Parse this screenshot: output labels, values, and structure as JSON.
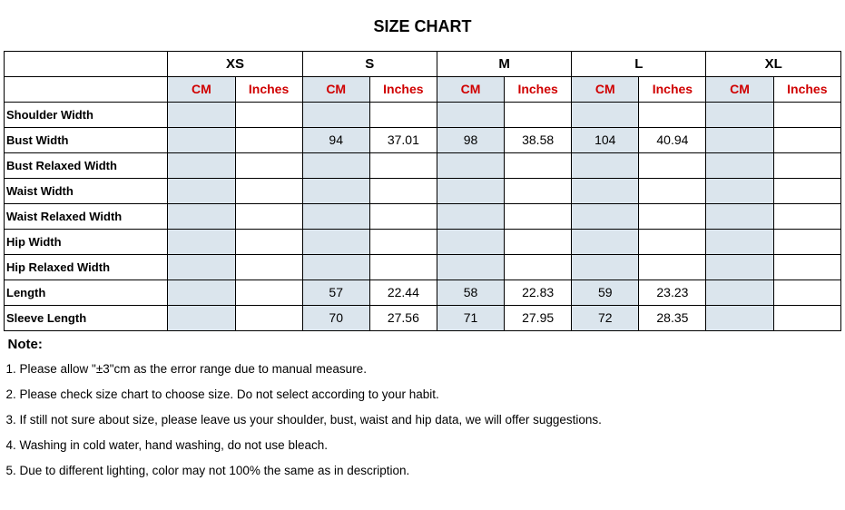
{
  "title": "SIZE CHART",
  "sizes": [
    "XS",
    "S",
    "M",
    "L",
    "XL"
  ],
  "units": [
    "CM",
    "Inches"
  ],
  "colors": {
    "unit_header": "#d00000",
    "alt_bg": "#dbe5ed",
    "border": "#000000",
    "background": "#ffffff"
  },
  "measurements": [
    {
      "label": "Shoulder Width",
      "values": {
        "XS": [
          "",
          ""
        ],
        "S": [
          "",
          ""
        ],
        "M": [
          "",
          ""
        ],
        "L": [
          "",
          ""
        ],
        "XL": [
          "",
          ""
        ]
      }
    },
    {
      "label": "Bust Width",
      "values": {
        "XS": [
          "",
          ""
        ],
        "S": [
          "94",
          "37.01"
        ],
        "M": [
          "98",
          "38.58"
        ],
        "L": [
          "104",
          "40.94"
        ],
        "XL": [
          "",
          ""
        ]
      }
    },
    {
      "label": "Bust Relaxed Width",
      "values": {
        "XS": [
          "",
          ""
        ],
        "S": [
          "",
          ""
        ],
        "M": [
          "",
          ""
        ],
        "L": [
          "",
          ""
        ],
        "XL": [
          "",
          ""
        ]
      }
    },
    {
      "label": "Waist Width",
      "values": {
        "XS": [
          "",
          ""
        ],
        "S": [
          "",
          ""
        ],
        "M": [
          "",
          ""
        ],
        "L": [
          "",
          ""
        ],
        "XL": [
          "",
          ""
        ]
      }
    },
    {
      "label": "Waist Relaxed Width",
      "values": {
        "XS": [
          "",
          ""
        ],
        "S": [
          "",
          ""
        ],
        "M": [
          "",
          ""
        ],
        "L": [
          "",
          ""
        ],
        "XL": [
          "",
          ""
        ]
      }
    },
    {
      "label": "Hip Width",
      "values": {
        "XS": [
          "",
          ""
        ],
        "S": [
          "",
          ""
        ],
        "M": [
          "",
          ""
        ],
        "L": [
          "",
          ""
        ],
        "XL": [
          "",
          ""
        ]
      }
    },
    {
      "label": "Hip Relaxed Width",
      "values": {
        "XS": [
          "",
          ""
        ],
        "S": [
          "",
          ""
        ],
        "M": [
          "",
          ""
        ],
        "L": [
          "",
          ""
        ],
        "XL": [
          "",
          ""
        ]
      }
    },
    {
      "label": "Length",
      "values": {
        "XS": [
          "",
          ""
        ],
        "S": [
          "57",
          "22.44"
        ],
        "M": [
          "58",
          "22.83"
        ],
        "L": [
          "59",
          "23.23"
        ],
        "XL": [
          "",
          ""
        ]
      }
    },
    {
      "label": "Sleeve Length",
      "values": {
        "XS": [
          "",
          ""
        ],
        "S": [
          "70",
          "27.56"
        ],
        "M": [
          "71",
          "27.95"
        ],
        "L": [
          "72",
          "28.35"
        ],
        "XL": [
          "",
          ""
        ]
      }
    }
  ],
  "note_title": "Note:",
  "notes": [
    "1. Please allow \"±3\"cm as the error range due to manual measure.",
    "2. Please check size chart to choose size. Do not select according to your habit.",
    "3. If still not sure about size, please leave us your shoulder, bust, waist and hip data, we will offer suggestions.",
    "4. Washing in cold water, hand washing, do not use bleach.",
    "5. Due to different lighting, color may not 100% the same as in description."
  ]
}
